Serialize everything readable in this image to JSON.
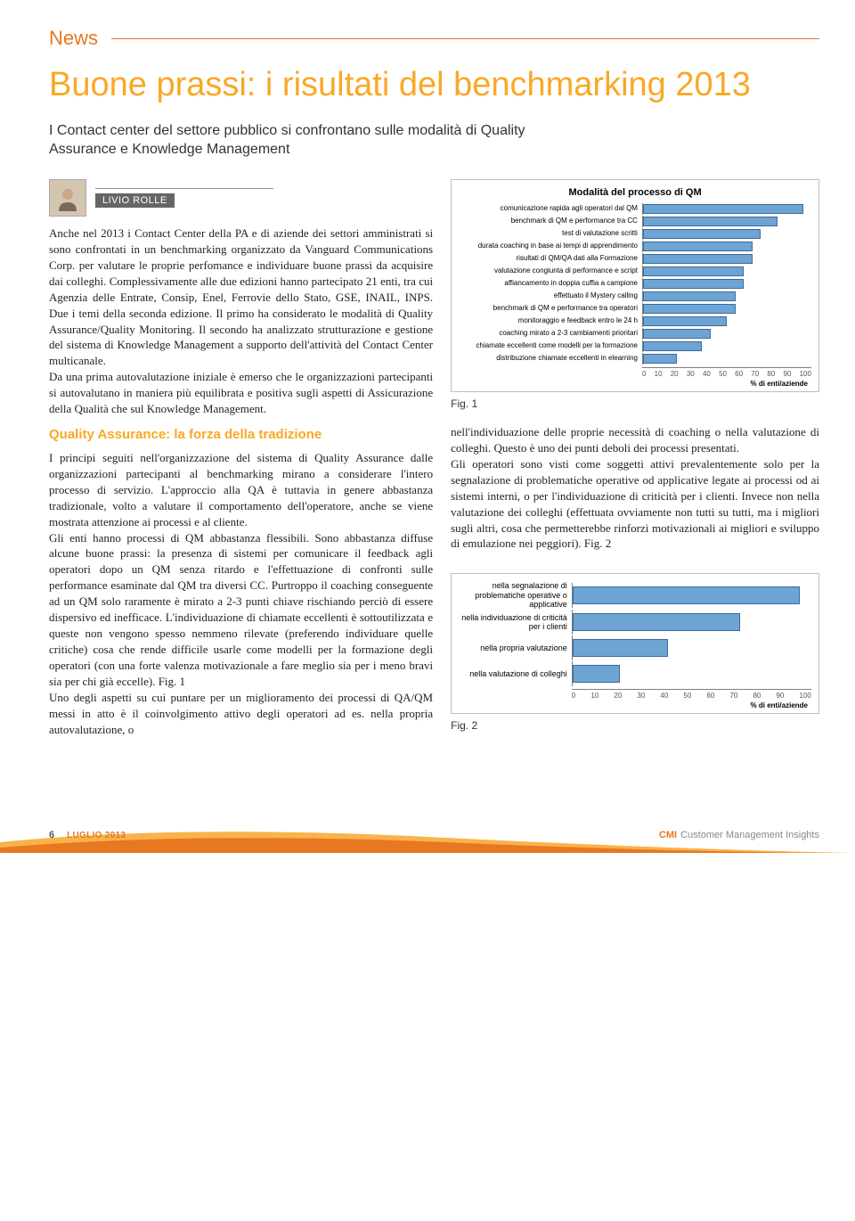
{
  "section_label": "News",
  "title": "Buone prassi: i risultati del benchmarking 2013",
  "subtitle": "I Contact center del settore pubblico si confrontano sulle modalità di Quality Assurance e Knowledge Management",
  "author": "LIVIO ROLLE",
  "para1": "Anche nel 2013 i Contact Center della PA e di aziende dei settori amministrati si sono confrontati in un benchmarking organizzato da Vanguard Communications Corp. per valutare le proprie perfomance e individuare buone prassi da acquisire dai colleghi. Complessivamente alle due edizioni hanno partecipato 21 enti, tra cui Agenzia delle Entrate, Consip, Enel, Ferrovie dello Stato, GSE, INAIL, INPS. Due i temi della seconda edizione. Il primo ha considerato le modalità di Quality Assurance/Quality Monitoring. Il secondo ha analizzato strutturazione e gestione del sistema di Knowledge Management a supporto dell'attività del Contact Center multicanale.",
  "para2": "Da una prima autovalutazione iniziale è emerso che le organizzazioni partecipanti si autovalutano in maniera più equilibrata e positiva sugli aspetti di Assicurazione della Qualità che sul Knowledge Management.",
  "subhead_qa": "Quality Assurance: la forza della tradizione",
  "para3": "I principi seguiti nell'organizzazione del sistema di Quality Assurance dalle organizzazioni partecipanti al benchmarking mirano a considerare l'intero processo di servizio. L'approccio alla QA è tuttavia in genere abbastanza tradizionale, volto a valutare il comportamento dell'operatore, anche se viene mostrata attenzione ai processi e al cliente.",
  "para4": "Gli enti hanno processi di QM abbastanza flessibili. Sono abbastanza diffuse alcune buone prassi: la presenza di sistemi per comunicare il feedback agli operatori dopo un QM senza ritardo e l'effettuazione di confronti sulle performance esaminate dal QM tra diversi CC. Purtroppo il coaching conseguente ad un QM solo raramente è mirato a 2-3 punti chiave rischiando perciò di essere dispersivo ed inefficace. L'individuazione di chiamate eccellenti è sottoutilizzata e queste non vengono spesso nemmeno rilevate (preferendo individuare quelle critiche) cosa che rende difficile usarle come modelli per la formazione degli operatori (con una forte valenza motivazionale a fare meglio sia per i meno bravi sia per chi già eccelle). Fig. 1",
  "para5": "Uno degli aspetti su cui puntare per un miglioramento dei processi di QA/QM messi in atto è il coinvolgimento attivo degli operatori ad es. nella propria autovalutazione, o",
  "right_para": "nell'individuazione delle proprie necessità di coaching o nella valutazione di colleghi. Questo è uno dei punti deboli dei processi presentati.",
  "right_para2": "Gli operatori sono visti come soggetti attivi prevalentemente solo per la segnalazione di problematiche operative od applicative legate ai processi od ai sistemi interni, o per l'individuazione di criticità per i clienti. Invece non nella valutazione dei colleghi (effettuata ovviamente non tutti su tutti, ma i migliori sugli altri, cosa che permetterebbe rinforzi motivazionali ai migliori e sviluppo di emulazione nei peggiori). Fig. 2",
  "fig1_caption": "Fig. 1",
  "fig2_caption": "Fig. 2",
  "chart1": {
    "title": "Modalità del processo di QM",
    "xlabel": "% di enti/aziende",
    "ticks": [
      "0",
      "10",
      "20",
      "30",
      "40",
      "50",
      "60",
      "70",
      "80",
      "90",
      "100"
    ],
    "bar_color": "#6ea4d4",
    "bar_border": "#3b6a9a",
    "rows": [
      {
        "label": "comunicazione rapida agli operatori dal QM",
        "value": 95
      },
      {
        "label": "benchmark di QM e performance tra CC",
        "value": 80
      },
      {
        "label": "test di valutazione scritti",
        "value": 70
      },
      {
        "label": "durata coaching in base ai tempi di apprendimento",
        "value": 65
      },
      {
        "label": "risultati di QM/QA dati alla Formazione",
        "value": 65
      },
      {
        "label": "valutazione congiunta di performance e script",
        "value": 60
      },
      {
        "label": "affiancamento in doppia cuffia a campione",
        "value": 60
      },
      {
        "label": "effettuato il Mystery calling",
        "value": 55
      },
      {
        "label": "benchmark di QM e performance tra operatori",
        "value": 55
      },
      {
        "label": "monitoraggio e feedback entro le 24 h",
        "value": 50
      },
      {
        "label": "coaching mirato a 2-3 cambiamenti prioritari",
        "value": 40
      },
      {
        "label": "chiamate eccellenti come modelli per la formazione",
        "value": 35
      },
      {
        "label": "distribuzione chiamate eccellenti in elearning",
        "value": 20
      }
    ]
  },
  "chart2": {
    "title": "",
    "xlabel": "% di enti/aziende",
    "ticks": [
      "0",
      "10",
      "20",
      "30",
      "40",
      "50",
      "60",
      "70",
      "80",
      "90",
      "100"
    ],
    "bar_color": "#6ea4d4",
    "bar_border": "#3b6a9a",
    "rows": [
      {
        "label": "nella segnalazione di problematiche operative o applicative",
        "value": 95
      },
      {
        "label": "nella individuazione di criticità per i clienti",
        "value": 70
      },
      {
        "label": "nella propria valutazione",
        "value": 40
      },
      {
        "label": "nella valutazione di colleghi",
        "value": 20
      }
    ]
  },
  "footer": {
    "page": "6",
    "date": "LUGLIO 2013",
    "brand_cmi": "CMI",
    "brand_rest": "Customer Management Insights"
  },
  "colors": {
    "orange": "#e87722",
    "yellow": "#f9a825",
    "curve1": "#f9b34a",
    "curve2": "#e87722"
  }
}
